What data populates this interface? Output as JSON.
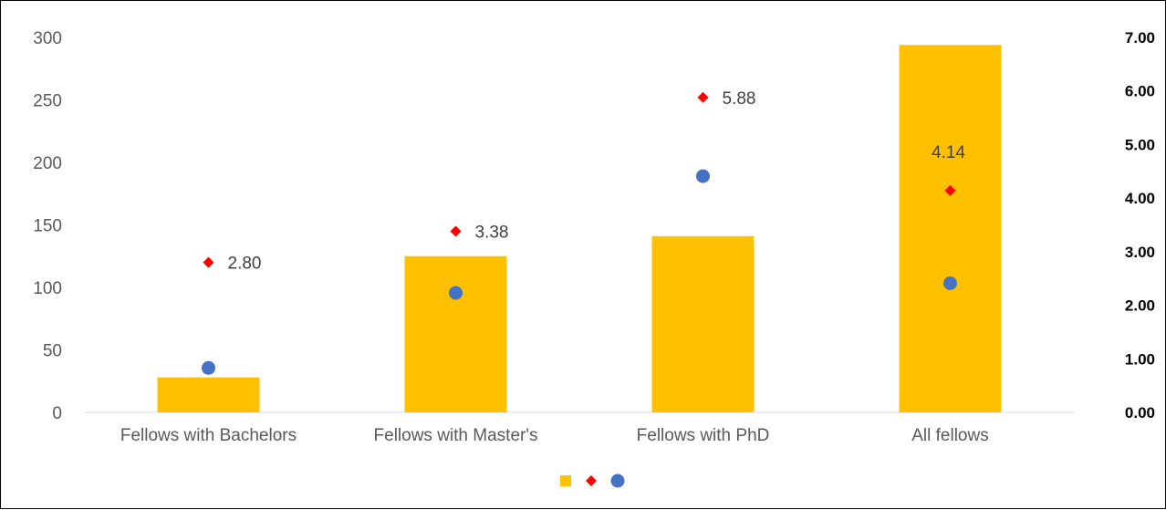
{
  "chart_data": {
    "type": "bar",
    "categories": [
      "Fellows with Bachelors",
      "Fellows with Master's",
      "Fellows with PhD",
      "All fellows"
    ],
    "series": [
      {
        "kind": "bar",
        "axis": "left",
        "color": "#FFC000",
        "marker": "square",
        "values": [
          28,
          125,
          141,
          294
        ]
      },
      {
        "kind": "scatter",
        "axis": "right",
        "color": "#FF0000",
        "marker": "diamond",
        "values": [
          2.8,
          3.38,
          5.88,
          4.14
        ],
        "labels": [
          "2.80",
          "3.38",
          "5.88",
          "4.14"
        ]
      },
      {
        "kind": "scatter",
        "axis": "right",
        "color": "#4472C4",
        "marker": "circle",
        "values": [
          0.83,
          2.23,
          4.41,
          2.41
        ]
      }
    ],
    "y_left": {
      "ylim": [
        0,
        300
      ],
      "ticks": [
        "0",
        "50",
        "100",
        "150",
        "200",
        "250",
        "300"
      ]
    },
    "y_right": {
      "ylim": [
        0,
        7
      ],
      "ticks": [
        "0.00",
        "1.00",
        "2.00",
        "3.00",
        "4.00",
        "5.00",
        "6.00",
        "7.00"
      ]
    },
    "grid": false,
    "legend": "bottom-center"
  }
}
